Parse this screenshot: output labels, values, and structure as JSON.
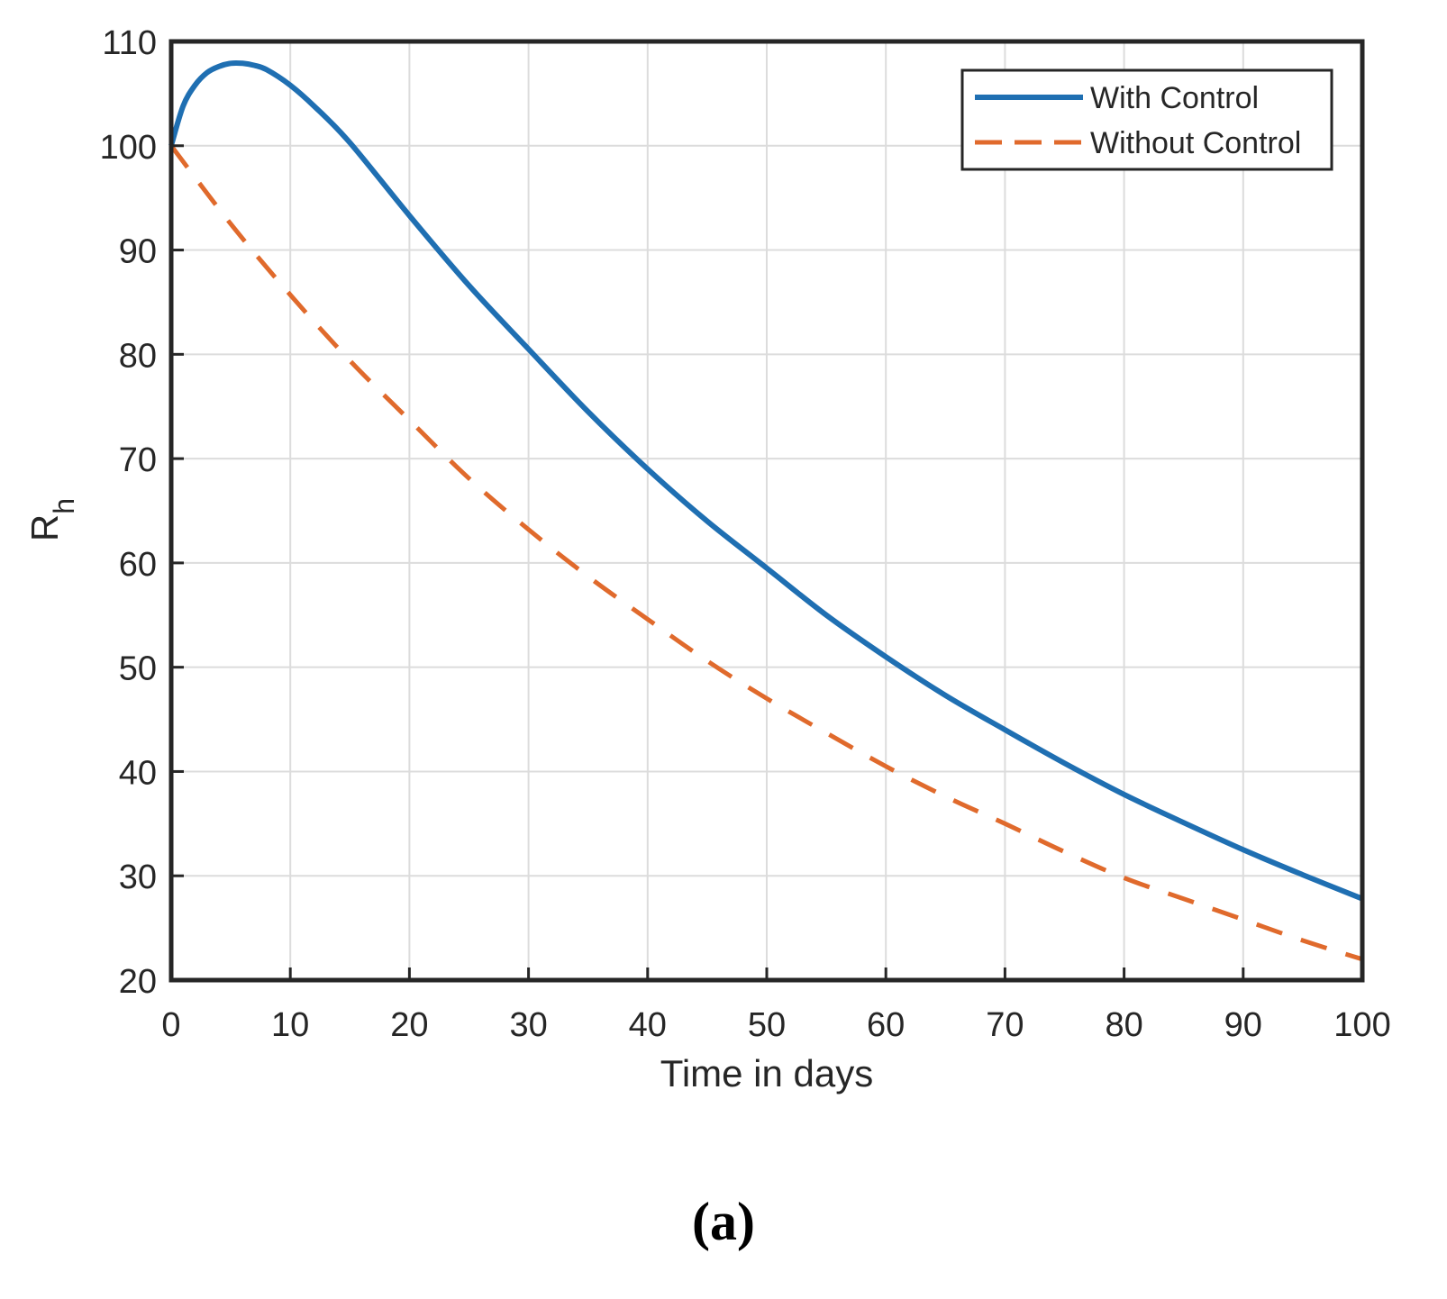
{
  "panel_label": "(a)",
  "chart_data": {
    "type": "line",
    "xlabel": "Time in days",
    "ylabel_main": "R",
    "ylabel_sub": "h",
    "xlim": [
      0,
      100
    ],
    "ylim": [
      20,
      110
    ],
    "xticks": [
      0,
      10,
      20,
      30,
      40,
      50,
      60,
      70,
      80,
      90,
      100
    ],
    "yticks": [
      20,
      30,
      40,
      50,
      60,
      70,
      80,
      90,
      100,
      110
    ],
    "grid": true,
    "legend_position": "top-right",
    "series": [
      {
        "name": "With Control",
        "style": "solid",
        "color": "#1f6fb2",
        "x": [
          0,
          1,
          2,
          3,
          4,
          5,
          6,
          7,
          8,
          10,
          12,
          15,
          20,
          25,
          30,
          35,
          40,
          45,
          50,
          55,
          60,
          65,
          70,
          75,
          80,
          85,
          90,
          95,
          100
        ],
        "y": [
          100,
          103.8,
          105.8,
          107,
          107.6,
          107.9,
          107.9,
          107.7,
          107.3,
          105.8,
          103.8,
          100.3,
          93.3,
          86.6,
          80.5,
          74.5,
          69,
          64,
          59.5,
          55,
          51,
          47.3,
          44,
          40.8,
          37.8,
          35.1,
          32.5,
          30.1,
          27.8
        ]
      },
      {
        "name": "Without Control",
        "style": "dashed",
        "color": "#e06a2c",
        "x": [
          0,
          5,
          10,
          15,
          20,
          25,
          30,
          35,
          40,
          45,
          50,
          55,
          60,
          65,
          70,
          75,
          80,
          85,
          90,
          95,
          100
        ],
        "y": [
          100,
          92.5,
          85.7,
          79.4,
          73.7,
          68.1,
          63.2,
          58.7,
          54.6,
          50.6,
          47,
          43.7,
          40.5,
          37.6,
          35,
          32.3,
          29.8,
          27.8,
          25.8,
          23.8,
          22
        ]
      }
    ]
  }
}
